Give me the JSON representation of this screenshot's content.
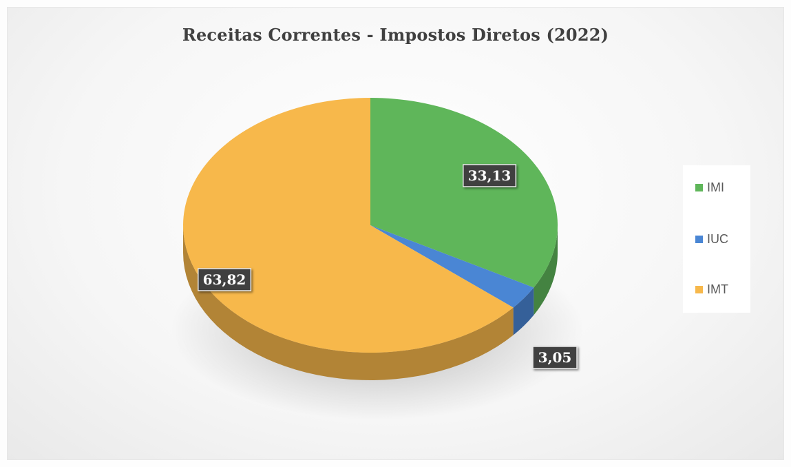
{
  "chart_data": {
    "type": "pie",
    "title": "Receitas Correntes - Impostos Diretos (2022)",
    "categories": [
      "IMI",
      "IUC",
      "IMT"
    ],
    "values": [
      33.13,
      3.05,
      63.82
    ],
    "data_labels": [
      "33,13",
      "3,05",
      "63,82"
    ],
    "colors": [
      "#5fb65a",
      "#4a86d4",
      "#f7b84b"
    ],
    "legend_position": "right",
    "style": "3d"
  }
}
